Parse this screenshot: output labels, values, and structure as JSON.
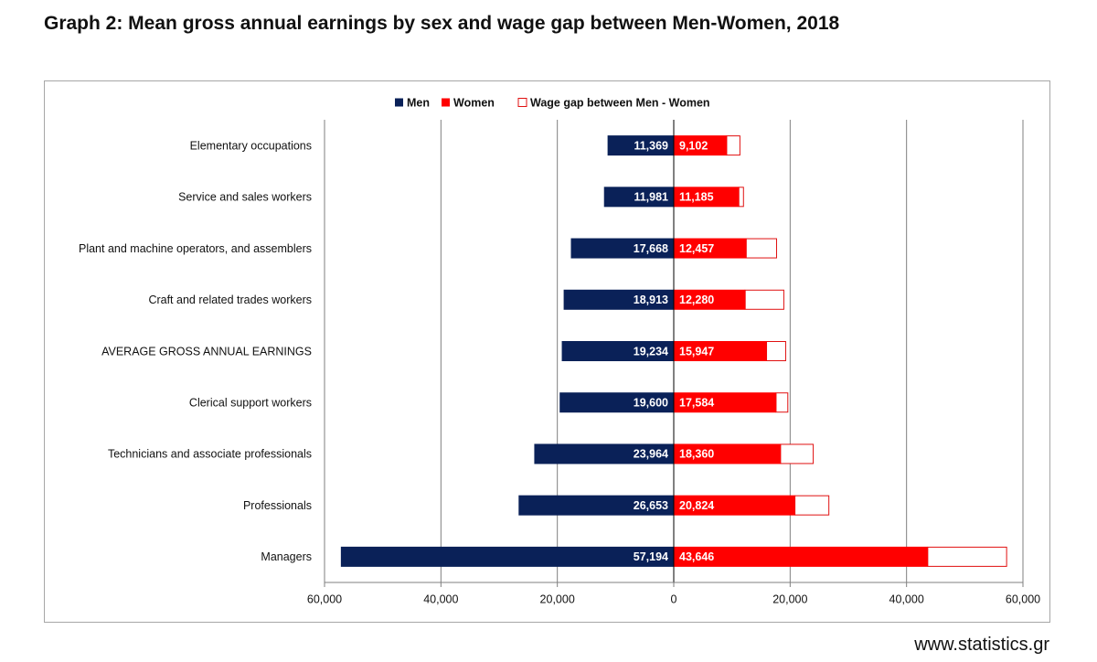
{
  "page": {
    "title": "Graph 2: Mean gross annual earnings by sex and wage gap between Men-Women, 2018",
    "footer": "www.statistics.gr"
  },
  "colors": {
    "men": "#0a2158",
    "women": "#ff0000",
    "gap_fill": "#ffffff",
    "gap_border": "#e01010",
    "gridline": "#7f7f7f",
    "frame": "#a6a6a6"
  },
  "chart_data": {
    "type": "bar",
    "orientation": "horizontal",
    "layout": "diverging",
    "title": "Graph 2: Mean gross annual earnings by sex and wage gap between Men-Women, 2018",
    "legend": [
      "Men",
      "Women",
      "Wage gap between  Men - Women"
    ],
    "legend_position": "top-center",
    "categories": [
      "Elementary occupations",
      "Service and sales workers",
      "Plant and machine operators, and assemblers",
      "Craft and related trades workers",
      "AVERAGE GROSS ANNUAL EARNINGS",
      "Clerical support workers",
      "Technicians and associate professionals",
      "Professionals",
      "Managers"
    ],
    "series": [
      {
        "name": "Men",
        "values": [
          11369,
          11981,
          17668,
          18913,
          19234,
          19600,
          23964,
          26653,
          57194
        ],
        "side": "left"
      },
      {
        "name": "Women",
        "values": [
          9102,
          11185,
          12457,
          12280,
          15947,
          17584,
          18360,
          20824,
          43646
        ],
        "side": "right"
      },
      {
        "name": "Wage gap between  Men - Women",
        "values": [
          2267,
          796,
          5211,
          6633,
          3287,
          2016,
          5604,
          5829,
          13548
        ],
        "side": "right"
      }
    ],
    "data_labels": {
      "men": [
        "11,369",
        "11,981",
        "17,668",
        "18,913",
        "19,234",
        "19,600",
        "23,964",
        "26,653",
        "57,194"
      ],
      "women": [
        "9,102",
        "11,185",
        "12,457",
        "12,280",
        "15,947",
        "17,584",
        "18,360",
        "20,824",
        "43,646"
      ]
    },
    "xlim": [
      -60000,
      60000
    ],
    "x_ticks": [
      -60000,
      -40000,
      -20000,
      0,
      20000,
      40000,
      60000
    ],
    "x_tick_labels": [
      "60,000",
      "40,000",
      "20,000",
      "0",
      "20,000",
      "40,000",
      "60,000"
    ],
    "grid": "vertical"
  }
}
